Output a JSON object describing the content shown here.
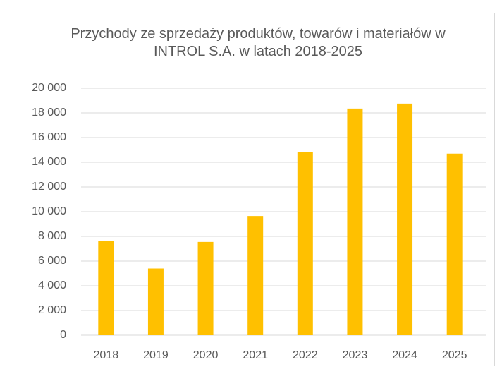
{
  "chart_data": {
    "type": "bar",
    "title": "Przychody ze sprzedaży produktów, towarów i materiałów w INTROL S.A. w latach 2018-2025",
    "categories": [
      "2018",
      "2019",
      "2020",
      "2021",
      "2022",
      "2023",
      "2024",
      "2025"
    ],
    "values": [
      7650,
      5400,
      7550,
      9650,
      14800,
      18350,
      18750,
      14700
    ],
    "color": "#ffc000",
    "ylim": [
      0,
      20000
    ],
    "yticks": [
      0,
      {
        "value": 2000,
        "label": "2 000"
      },
      {
        "value": 4000,
        "label": "4 000"
      },
      {
        "value": 6000,
        "label": "6 000"
      },
      {
        "value": 8000,
        "label": "8 000"
      },
      {
        "value": 10000,
        "label": "10 000"
      },
      {
        "value": 12000,
        "label": "12 000"
      },
      {
        "value": 14000,
        "label": "14 000"
      },
      {
        "value": 16000,
        "label": "16 000"
      },
      {
        "value": 18000,
        "label": "18 000"
      },
      {
        "value": 20000,
        "label": "20 000"
      }
    ],
    "grid": true
  }
}
